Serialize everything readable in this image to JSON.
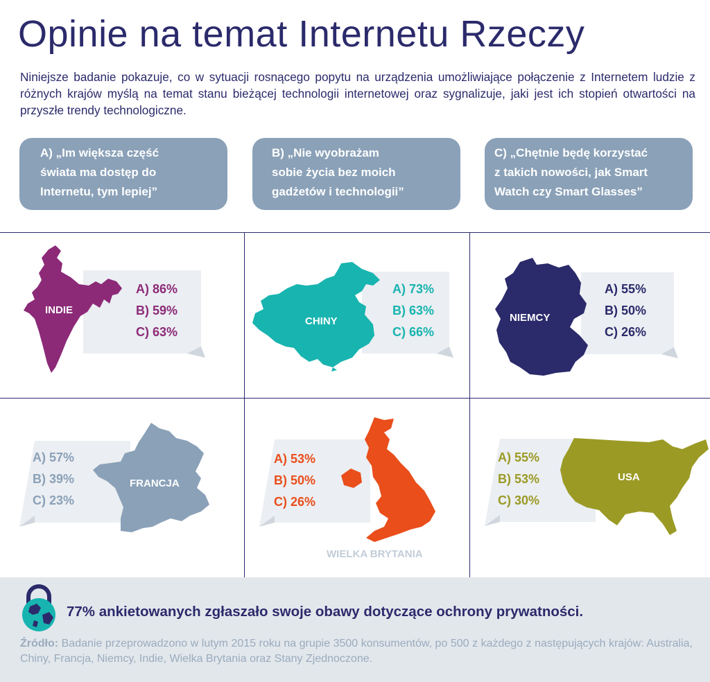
{
  "header": {
    "title": "Opinie na temat Internetu Rzeczy",
    "intro": "Niniejsze badanie pokazuje, co w sytuacji rosnącego popytu na urządzenia umożliwiające połączenie z Internetem ludzie z różnych krajów myślą na temat stanu bieżącej technologii internetowej oraz sygnalizuje, jaki jest ich stopień otwartości na przyszłe trendy technologiczne."
  },
  "questions": [
    {
      "line1": "A) „Im większa część",
      "line2": "świata ma dostęp do",
      "line3": "Internetu, tym lepiej”"
    },
    {
      "line1": "B) „Nie wyobrażam",
      "line2": "sobie życia bez moich",
      "line3": "gadżetów i technologii”"
    },
    {
      "line1": "C) „Chętnie będę korzystać",
      "line2": "z takich nowości, jak Smart",
      "line3": "Watch czy Smart Glasses”"
    }
  ],
  "countries": {
    "india": {
      "name": "INDIE",
      "a": "A) 86%",
      "b": "B) 59%",
      "c": "C) 63%",
      "color": "#8c2a78"
    },
    "china": {
      "name": "CHINY",
      "a": "A) 73%",
      "b": "B) 63%",
      "c": "C) 66%",
      "color": "#18b4b0"
    },
    "germany": {
      "name": "NIEMCY",
      "a": "A) 55%",
      "b": "B) 50%",
      "c": "C) 26%",
      "color": "#2b2a6b"
    },
    "france": {
      "name": "FRANCJA",
      "a": "A) 57%",
      "b": "B) 39%",
      "c": "C) 23%",
      "color": "#8aa1b8"
    },
    "uk": {
      "name": "WIELKA BRYTANIA",
      "a": "A) 53%",
      "b": "B) 50%",
      "c": "C) 26%",
      "color": "#e94e1b"
    },
    "usa": {
      "name": "USA",
      "a": "A) 55%",
      "b": "B) 53%",
      "c": "C) 30%",
      "color": "#9b9a25"
    }
  },
  "footer": {
    "privacy": "77% ankietowanych zgłaszało swoje obawy dotyczące ochrony prywatności.",
    "source_label": "Źródło:",
    "source_text": " Badanie przeprowadzono w lutym 2015 roku na grupie 3500 konsumentów, po 500 z każdego z następujących krajów: Australia, Chiny, Francja, Niemcy, Indie, Wielka Brytania oraz Stany Zjednoczone.",
    "icon": "globe-lock-icon"
  }
}
